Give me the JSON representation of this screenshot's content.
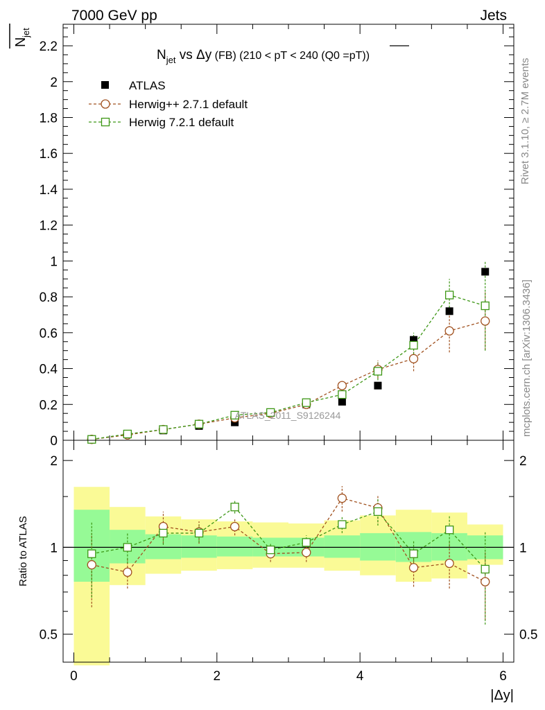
{
  "header": {
    "left": "7000 GeV pp",
    "right": "Jets"
  },
  "side_labels": {
    "rivet": "Rivet 3.1.10, ≥ 2.7M events",
    "mcplots": "mcplots.cern.ch [arXiv:1306.3436]"
  },
  "watermark": "ATLAS_2011_S9126244",
  "colors": {
    "atlas": "#000000",
    "herwigpp": "#a0501e",
    "herwig7": "#3c9614",
    "band_inner": "#96fa96",
    "band_outer": "#fafa96"
  },
  "chart_data": [
    {
      "type": "scatter",
      "title": {
        "n": "N",
        "n_sub": "jet",
        "mid": " vs ",
        "dy": "Δy",
        "fb": " (FB) ",
        "range": "(210 < pT < 240 (Q0 =",
        "q0": "pT",
        "close": "))"
      },
      "ylabel": {
        "n": "N",
        "sub": "jet"
      },
      "xlim": [
        -0.15,
        6.15
      ],
      "ylim": [
        0,
        2.32
      ],
      "yticks": [
        0,
        0.2,
        0.4,
        0.6,
        0.8,
        1,
        1.2,
        1.4,
        1.6,
        1.8,
        2,
        2.2
      ],
      "ytick_labels": [
        "0",
        "0.2",
        "0.4",
        "0.6",
        "0.8",
        "1",
        "1.2",
        "1.4",
        "1.6",
        "1.8",
        "2",
        "2.2"
      ],
      "legend_position": "top-left",
      "x": [
        0.25,
        0.75,
        1.25,
        1.75,
        2.25,
        2.75,
        3.25,
        3.75,
        4.25,
        4.75,
        5.25,
        5.75
      ],
      "series": [
        {
          "name": "ATLAS",
          "marker": "filled-square",
          "y": [
            0.005,
            0.035,
            0.055,
            0.08,
            0.1,
            0.155,
            0.2,
            0.215,
            0.305,
            0.56,
            0.72,
            0.94
          ],
          "yerr": [
            0,
            0,
            0,
            0,
            0,
            0,
            0,
            0,
            0,
            0,
            0,
            0
          ]
        },
        {
          "name": "Herwig++ 2.7.1 default",
          "marker": "open-circle",
          "y": [
            0.005,
            0.03,
            0.06,
            0.09,
            0.125,
            0.15,
            0.2,
            0.305,
            0.395,
            0.455,
            0.61,
            0.665
          ],
          "yerr": [
            0.002,
            0.003,
            0.005,
            0.007,
            0.01,
            0.012,
            0.015,
            0.025,
            0.05,
            0.07,
            0.12,
            0.16
          ]
        },
        {
          "name": "Herwig 7.2.1 default",
          "marker": "open-square",
          "y": [
            0.005,
            0.035,
            0.06,
            0.09,
            0.14,
            0.155,
            0.21,
            0.255,
            0.385,
            0.53,
            0.81,
            0.75
          ],
          "yerr": [
            0.002,
            0.003,
            0.005,
            0.007,
            0.01,
            0.012,
            0.015,
            0.025,
            0.05,
            0.07,
            0.09,
            0.25
          ]
        }
      ]
    },
    {
      "type": "scatter",
      "ylabel": "Ratio to ATLAS",
      "xlabel": "|Δy|",
      "xlim": [
        -0.15,
        6.15
      ],
      "ylim": [
        0.4,
        2.35
      ],
      "log_y": true,
      "yticks": [
        0.5,
        1,
        2
      ],
      "ytick_labels": [
        "0.5",
        "1",
        "2"
      ],
      "xticks": [
        0,
        2,
        4,
        6
      ],
      "xtick_labels": [
        "0",
        "2",
        "4",
        "6"
      ],
      "reference_line": 1,
      "bins": [
        {
          "lo": 0.0,
          "hi": 0.5,
          "inner": [
            0.76,
            1.35
          ],
          "outer": [
            0.39,
            1.62
          ]
        },
        {
          "lo": 0.5,
          "hi": 1.0,
          "inner": [
            0.88,
            1.15
          ],
          "outer": [
            0.74,
            1.38
          ]
        },
        {
          "lo": 1.0,
          "hi": 1.5,
          "inner": [
            0.91,
            1.11
          ],
          "outer": [
            0.81,
            1.28
          ]
        },
        {
          "lo": 1.5,
          "hi": 2.0,
          "inner": [
            0.92,
            1.1
          ],
          "outer": [
            0.83,
            1.25
          ]
        },
        {
          "lo": 2.0,
          "hi": 2.5,
          "inner": [
            0.93,
            1.09
          ],
          "outer": [
            0.84,
            1.23
          ]
        },
        {
          "lo": 2.5,
          "hi": 3.0,
          "inner": [
            0.93,
            1.08
          ],
          "outer": [
            0.85,
            1.22
          ]
        },
        {
          "lo": 3.0,
          "hi": 3.5,
          "inner": [
            0.93,
            1.08
          ],
          "outer": [
            0.85,
            1.21
          ]
        },
        {
          "lo": 3.5,
          "hi": 4.0,
          "inner": [
            0.92,
            1.1
          ],
          "outer": [
            0.83,
            1.24
          ]
        },
        {
          "lo": 4.0,
          "hi": 4.5,
          "inner": [
            0.9,
            1.12
          ],
          "outer": [
            0.8,
            1.29
          ]
        },
        {
          "lo": 4.5,
          "hi": 5.0,
          "inner": [
            0.89,
            1.13
          ],
          "outer": [
            0.76,
            1.35
          ]
        },
        {
          "lo": 5.0,
          "hi": 5.5,
          "inner": [
            0.9,
            1.12
          ],
          "outer": [
            0.78,
            1.32
          ]
        },
        {
          "lo": 5.5,
          "hi": 6.0,
          "inner": [
            0.91,
            1.1
          ],
          "outer": [
            0.87,
            1.2
          ]
        }
      ],
      "x": [
        0.25,
        0.75,
        1.25,
        1.75,
        2.25,
        2.75,
        3.25,
        3.75,
        4.25,
        4.75,
        5.25,
        5.75
      ],
      "series": [
        {
          "name": "Herwig++ 2.7.1 default",
          "marker": "open-circle",
          "y": [
            0.87,
            0.82,
            1.18,
            1.13,
            1.18,
            0.95,
            0.96,
            1.48,
            1.37,
            0.85,
            0.88,
            0.76
          ],
          "yerr": [
            0.25,
            0.1,
            0.15,
            0.1,
            0.08,
            0.06,
            0.07,
            0.15,
            0.15,
            0.12,
            0.16,
            0.2
          ]
        },
        {
          "name": "Herwig 7.2.1 default",
          "marker": "open-square",
          "y": [
            0.95,
            1.0,
            1.12,
            1.12,
            1.38,
            0.98,
            1.04,
            1.2,
            1.33,
            0.95,
            1.15,
            0.84
          ],
          "yerr": [
            0.28,
            0.12,
            0.1,
            0.08,
            0.07,
            0.05,
            0.06,
            0.08,
            0.14,
            0.1,
            0.14,
            0.3
          ]
        }
      ]
    }
  ]
}
